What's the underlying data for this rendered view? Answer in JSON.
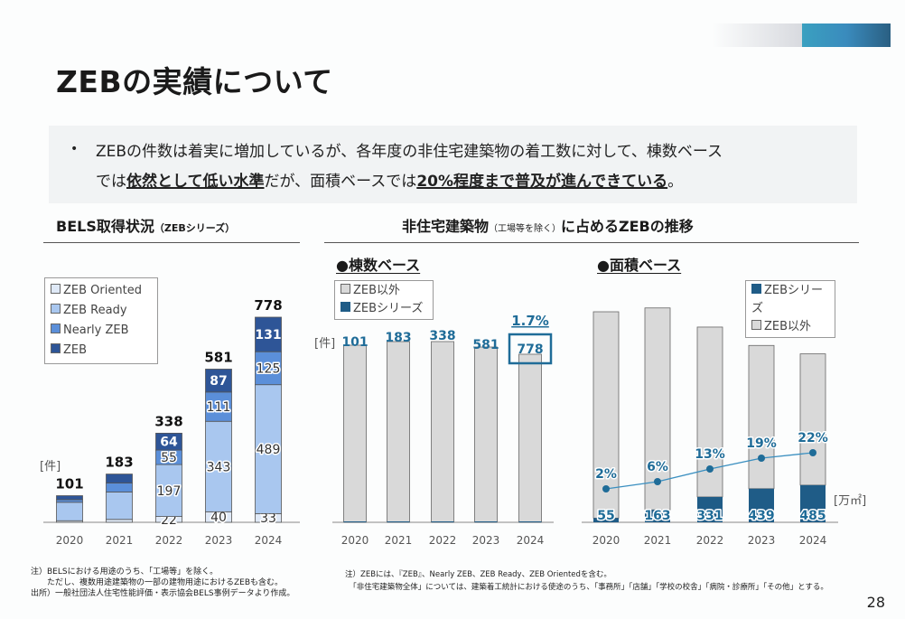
{
  "header": {
    "title": "ZEBの実績について",
    "page_number": "28"
  },
  "summary": {
    "bullet": "•",
    "line1": "ZEBの件数は着実に増加しているが、各年度の非住宅建築物の着工数に対して、棟数ベース",
    "line2_pre": "では",
    "line2_emph1": "依然として低い水準",
    "line2_mid": "だが、面積ベースでは",
    "line2_emph2": "20%程度まで普及が進んできている",
    "line2_post": "。"
  },
  "left_section": {
    "title": "BELS取得状況",
    "title_suffix": "（ZEBシリーズ）"
  },
  "right_section": {
    "title": "非住宅建築物",
    "title_paren": "（工場等を除く）",
    "title_suffix": "に占めるZEBの推移",
    "count_subtitle": "●棟数ベース",
    "area_subtitle": "●面積ベース"
  },
  "colors": {
    "zeb": "#2e5597",
    "nearly_zeb": "#5b8fd9",
    "zeb_ready": "#a9c7ef",
    "zeb_oriented": "#dfe9f7",
    "non_zeb": "#d9d9d9",
    "zeb_series": "#1f5c87",
    "accent_text": "#1f6c98"
  },
  "chart_data": [
    {
      "id": "bels",
      "type": "bar",
      "stacked": true,
      "title": "BELS取得状況（ZEBシリーズ）",
      "unit": "[件]",
      "categories": [
        "2020",
        "2021",
        "2022",
        "2023",
        "2024"
      ],
      "series": [
        {
          "name": "ZEB Oriented",
          "values": [
            6,
            11,
            22,
            40,
            33
          ],
          "labels": [
            "",
            "",
            "22",
            "40",
            "33"
          ]
        },
        {
          "name": "ZEB Ready",
          "values": [
            70,
            104,
            197,
            343,
            489
          ],
          "labels": [
            "",
            "",
            "197",
            "343",
            "489"
          ]
        },
        {
          "name": "Nearly ZEB",
          "values": [
            10,
            34,
            55,
            111,
            125
          ],
          "labels": [
            "",
            "",
            "55",
            "111",
            "125"
          ]
        },
        {
          "name": "ZEB",
          "values": [
            15,
            34,
            64,
            87,
            131
          ],
          "labels": [
            "",
            "",
            "64",
            "87",
            "131"
          ]
        }
      ],
      "totals": [
        101,
        183,
        338,
        581,
        778
      ],
      "legend": [
        "ZEB Oriented",
        "ZEB Ready",
        "Nearly ZEB",
        "ZEB"
      ],
      "legend_position": "top-left"
    },
    {
      "id": "count",
      "type": "bar",
      "stacked": true,
      "title": "●棟数ベース",
      "unit": "[件]",
      "categories": [
        "2020",
        "2021",
        "2022",
        "2023",
        "2024"
      ],
      "series": [
        {
          "name": "ZEB以外",
          "values": [
            100,
            100,
            100,
            100,
            100
          ]
        },
        {
          "name": "ZEBシリーズ",
          "values": [
            101,
            183,
            338,
            581,
            778
          ]
        }
      ],
      "value_labels": [
        "101",
        "183",
        "338",
        "581",
        "778"
      ],
      "highlight": {
        "category": "2024",
        "share_label": "1.7%"
      },
      "legend": [
        "ZEB以外",
        "ZEBシリーズ"
      ],
      "legend_position": "top-left"
    },
    {
      "id": "area",
      "type": "bar",
      "stacked": true,
      "title": "●面積ベース",
      "unit": "[万㎡]",
      "categories": [
        "2020",
        "2021",
        "2022",
        "2023",
        "2024"
      ],
      "series": [
        {
          "name": "ZEBシリーズ",
          "values": [
            55,
            163,
            331,
            439,
            485
          ]
        },
        {
          "name": "ZEB以外",
          "values": [
            2695,
            2637,
            2219,
            1871,
            1715
          ]
        }
      ],
      "share_line": {
        "name": "ZEB share",
        "values": [
          2,
          6,
          13,
          19,
          22
        ],
        "labels": [
          "2%",
          "6%",
          "13%",
          "19%",
          "22%"
        ]
      },
      "legend": [
        "ZEBシリーズ",
        "ZEB以外"
      ],
      "legend_position": "top-right"
    }
  ],
  "notes": {
    "left": [
      "注）BELSにおける用途のうち、「工場等」を除く。",
      "　　ただし、複数用途建築物の一部の建物用途におけるZEBも含む。",
      "出所）一般社団法人住宅性能評価・表示協会BELS事例データより作成。"
    ],
    "right": [
      "注）ZEBには、『ZEB』、Nearly ZEB、ZEB Ready、ZEB Orientedを含む。",
      "　「非住宅建築物全体」については、建築着工統計における使途のうち、「事務所」「店舗」「学校の校舎」「病院・診療所」「その他」とする。"
    ]
  }
}
